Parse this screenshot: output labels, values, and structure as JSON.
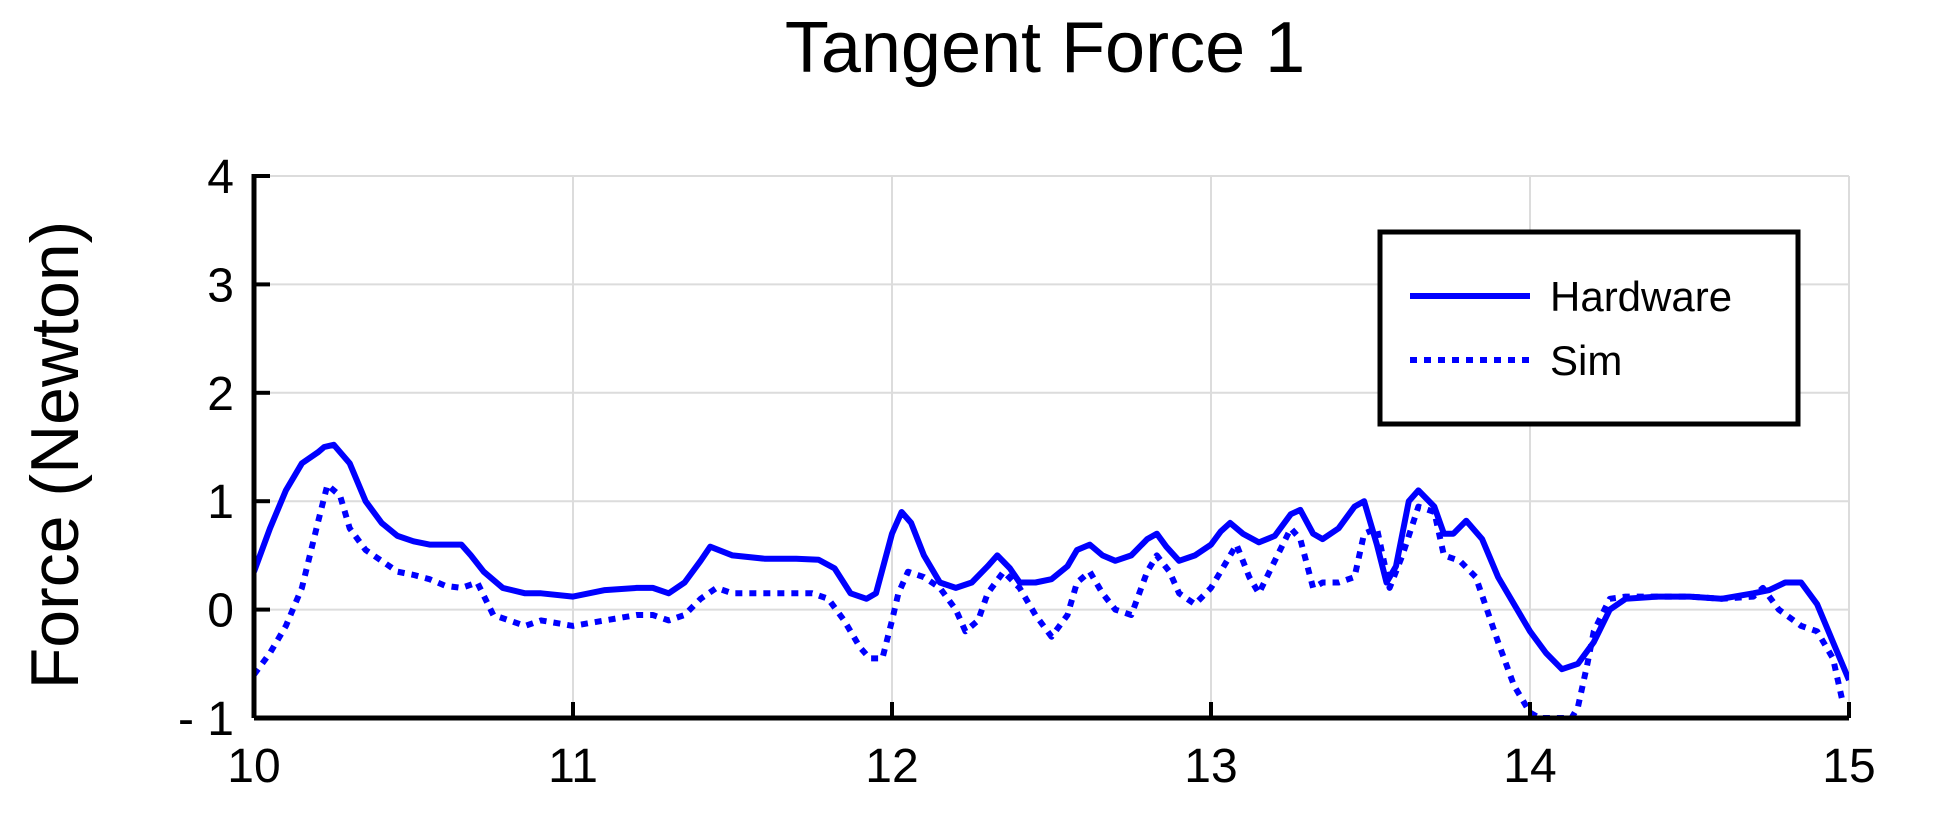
{
  "chart_data": {
    "type": "line",
    "title": "Tangent Force 1",
    "xlabel": "",
    "ylabel": "Force (Newton)",
    "xlim": [
      10,
      15
    ],
    "ylim": [
      -1,
      4
    ],
    "xticks": [
      10,
      11,
      12,
      13,
      14,
      15
    ],
    "yticks": [
      4,
      3,
      2,
      1,
      0,
      -1
    ],
    "xtick_labels": [
      "10",
      "11",
      "12",
      "13",
      "14",
      "15"
    ],
    "ytick_labels": [
      "4",
      "3",
      "2",
      "1",
      "0",
      "- 1"
    ],
    "grid": true,
    "legend": "top-right",
    "color": "#0000ff",
    "series": [
      {
        "name": "Hardware",
        "style": "solid",
        "x": [
          10.0,
          10.05,
          10.1,
          10.15,
          10.2,
          10.22,
          10.25,
          10.3,
          10.35,
          10.4,
          10.45,
          10.5,
          10.55,
          10.6,
          10.65,
          10.68,
          10.72,
          10.78,
          10.85,
          10.9,
          11.0,
          11.05,
          11.1,
          11.2,
          11.25,
          11.3,
          11.35,
          11.4,
          11.43,
          11.5,
          11.6,
          11.7,
          11.77,
          11.82,
          11.87,
          11.92,
          11.95,
          12.0,
          12.03,
          12.06,
          12.1,
          12.15,
          12.2,
          12.25,
          12.3,
          12.33,
          12.37,
          12.4,
          12.45,
          12.5,
          12.55,
          12.58,
          12.62,
          12.66,
          12.7,
          12.75,
          12.8,
          12.83,
          12.86,
          12.9,
          12.95,
          13.0,
          13.03,
          13.06,
          13.1,
          13.15,
          13.2,
          13.25,
          13.28,
          13.32,
          13.35,
          13.4,
          13.45,
          13.48,
          13.52,
          13.55,
          13.58,
          13.62,
          13.65,
          13.7,
          13.73,
          13.76,
          13.8,
          13.85,
          13.9,
          14.0,
          14.05,
          14.1,
          14.15,
          14.2,
          14.25,
          14.3,
          14.4,
          14.5,
          14.6,
          14.7,
          14.75,
          14.8,
          14.85,
          14.9,
          14.95,
          15.0
        ],
        "values": [
          0.35,
          0.75,
          1.1,
          1.35,
          1.45,
          1.5,
          1.52,
          1.35,
          1.0,
          0.8,
          0.68,
          0.63,
          0.6,
          0.6,
          0.6,
          0.5,
          0.35,
          0.2,
          0.15,
          0.15,
          0.12,
          0.15,
          0.18,
          0.2,
          0.2,
          0.15,
          0.25,
          0.45,
          0.58,
          0.5,
          0.47,
          0.47,
          0.46,
          0.38,
          0.15,
          0.1,
          0.15,
          0.7,
          0.9,
          0.8,
          0.5,
          0.25,
          0.2,
          0.25,
          0.4,
          0.5,
          0.38,
          0.25,
          0.25,
          0.28,
          0.4,
          0.55,
          0.6,
          0.5,
          0.45,
          0.5,
          0.65,
          0.7,
          0.58,
          0.45,
          0.5,
          0.6,
          0.72,
          0.8,
          0.7,
          0.62,
          0.68,
          0.88,
          0.92,
          0.7,
          0.65,
          0.75,
          0.95,
          1.0,
          0.6,
          0.25,
          0.4,
          1.0,
          1.1,
          0.95,
          0.7,
          0.7,
          0.82,
          0.65,
          0.3,
          -0.2,
          -0.4,
          -0.55,
          -0.5,
          -0.3,
          0.0,
          0.1,
          0.12,
          0.12,
          0.1,
          0.15,
          0.18,
          0.25,
          0.25,
          0.05,
          -0.3,
          -0.65
        ]
      },
      {
        "name": "Sim",
        "style": "dotted",
        "x": [
          10.0,
          10.05,
          10.1,
          10.15,
          10.2,
          10.23,
          10.27,
          10.3,
          10.35,
          10.4,
          10.45,
          10.5,
          10.55,
          10.6,
          10.65,
          10.7,
          10.75,
          10.8,
          10.85,
          10.9,
          11.0,
          11.1,
          11.2,
          11.25,
          11.3,
          11.35,
          11.4,
          11.45,
          11.5,
          11.6,
          11.7,
          11.75,
          11.8,
          11.85,
          11.9,
          11.93,
          11.97,
          12.0,
          12.02,
          12.05,
          12.1,
          12.15,
          12.2,
          12.23,
          12.27,
          12.3,
          12.35,
          12.4,
          12.45,
          12.5,
          12.55,
          12.58,
          12.62,
          12.66,
          12.7,
          12.75,
          12.8,
          12.83,
          12.87,
          12.9,
          12.95,
          13.0,
          13.05,
          13.08,
          13.12,
          13.15,
          13.2,
          13.25,
          13.28,
          13.32,
          13.35,
          13.4,
          13.45,
          13.48,
          13.52,
          13.56,
          13.6,
          13.65,
          13.7,
          13.73,
          13.78,
          13.83,
          13.9,
          13.95,
          14.0,
          14.03,
          14.08,
          14.13,
          14.15,
          14.18,
          14.2,
          14.25,
          14.3,
          14.5,
          14.6,
          14.7,
          14.73,
          14.78,
          14.85,
          14.9,
          14.95,
          14.98
        ],
        "values": [
          -0.6,
          -0.4,
          -0.15,
          0.2,
          0.8,
          1.15,
          1.05,
          0.75,
          0.55,
          0.45,
          0.35,
          0.32,
          0.28,
          0.22,
          0.2,
          0.25,
          -0.05,
          -0.1,
          -0.15,
          -0.1,
          -0.15,
          -0.1,
          -0.05,
          -0.05,
          -0.1,
          -0.05,
          0.1,
          0.2,
          0.15,
          0.15,
          0.15,
          0.15,
          0.1,
          -0.1,
          -0.35,
          -0.45,
          -0.45,
          -0.1,
          0.15,
          0.35,
          0.3,
          0.2,
          0.0,
          -0.2,
          -0.1,
          0.15,
          0.35,
          0.2,
          -0.05,
          -0.25,
          -0.05,
          0.25,
          0.35,
          0.15,
          0.0,
          -0.05,
          0.35,
          0.5,
          0.35,
          0.15,
          0.05,
          0.2,
          0.45,
          0.6,
          0.3,
          0.15,
          0.45,
          0.75,
          0.65,
          0.2,
          0.25,
          0.25,
          0.3,
          0.7,
          0.75,
          0.2,
          0.5,
          0.95,
          0.9,
          0.5,
          0.45,
          0.3,
          -0.3,
          -0.7,
          -0.95,
          -1.0,
          -1.0,
          -1.0,
          -0.9,
          -0.5,
          -0.2,
          0.1,
          0.12,
          0.12,
          0.1,
          0.12,
          0.2,
          0.0,
          -0.15,
          -0.2,
          -0.45,
          -0.85
        ]
      }
    ]
  }
}
